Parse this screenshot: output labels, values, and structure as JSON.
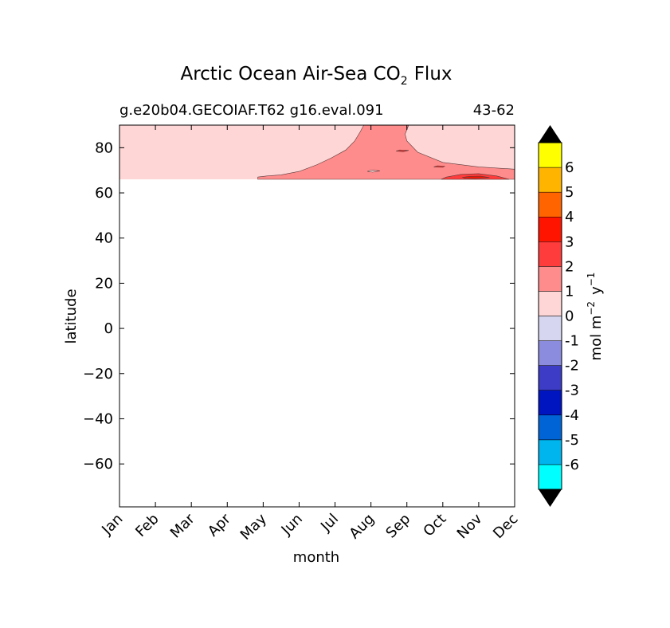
{
  "chart_data": {
    "type": "heatmap",
    "title_main": "Arctic Ocean Air-Sea CO",
    "title_sub": "2",
    "title_tail": "Flux",
    "subtitle_left": "g.e20b04.GECOIAF.T62 g16.eval.091",
    "subtitle_right": "43-62",
    "xlabel": "month",
    "ylabel": "latitude",
    "xcategories": [
      "Jan",
      "Feb",
      "Mar",
      "Apr",
      "May",
      "Jun",
      "Jul",
      "Aug",
      "Sep",
      "Oct",
      "Nov",
      "Dec"
    ],
    "xlim": [
      0,
      11
    ],
    "ylim": [
      -79,
      90
    ],
    "yticks": [
      80,
      60,
      40,
      20,
      0,
      -20,
      -40,
      -60
    ],
    "ytick_labels": [
      "80",
      "60",
      "40",
      "20",
      "0",
      "−20",
      "−40",
      "−60"
    ],
    "data_extent_lat": [
      66,
      90
    ],
    "colorbar": {
      "label_main": "mol m",
      "label_exp1": "−2",
      "label_mid": "y",
      "label_exp2": "−1",
      "levels": [
        -7,
        -6,
        -5,
        -4,
        -3,
        -2,
        -1,
        0,
        1,
        2,
        3,
        4,
        5,
        6,
        7
      ],
      "tick_labels": [
        "-6",
        "-5",
        "-4",
        "-3",
        "-2",
        "-1",
        "0",
        "1",
        "2",
        "3",
        "4",
        "5",
        "6"
      ],
      "colors": [
        "#00ffff",
        "#00b4ee",
        "#0064d6",
        "#0014c0",
        "#3c3cc6",
        "#8c8cde",
        "#d6d6f0",
        "#ffd6d6",
        "#ff8c8c",
        "#ff3c3c",
        "#ff1400",
        "#ff6400",
        "#ffb400",
        "#ffff00"
      ],
      "extend_color": "#000000"
    },
    "contour_regions": [
      {
        "name": "flux-0-1-background",
        "level_range": [
          0,
          1
        ],
        "color": "#ffd6d6",
        "boundary": [
          [
            0,
            66
          ],
          [
            11,
            66
          ],
          [
            11,
            90
          ],
          [
            0,
            90
          ]
        ]
      },
      {
        "name": "flux-1-2-region",
        "level_range": [
          1,
          2
        ],
        "color": "#ff8c8c",
        "boundary": [
          [
            3.85,
            66
          ],
          [
            11,
            66
          ],
          [
            11,
            70.5
          ],
          [
            10,
            71.5
          ],
          [
            9,
            73.5
          ],
          [
            8.3,
            78
          ],
          [
            8,
            83
          ],
          [
            7.95,
            86
          ],
          [
            8.05,
            90
          ],
          [
            6.8,
            90
          ],
          [
            6.7,
            87
          ],
          [
            6.55,
            83
          ],
          [
            6.3,
            79
          ],
          [
            5.9,
            75.5
          ],
          [
            5.5,
            72.5
          ],
          [
            5,
            69.5
          ],
          [
            4.5,
            68
          ],
          [
            4.1,
            67.5
          ],
          [
            3.85,
            67
          ]
        ]
      },
      {
        "name": "flux-2-3-region",
        "level_range": [
          2,
          3
        ],
        "color": "#ff3c3c",
        "boundary": [
          [
            8.95,
            66
          ],
          [
            10.85,
            66
          ],
          [
            10.5,
            67.5
          ],
          [
            10,
            68.5
          ],
          [
            9.5,
            68.2
          ],
          [
            9.1,
            67
          ]
        ]
      },
      {
        "name": "flux-3-4-region",
        "level_range": [
          3,
          4
        ],
        "color": "#ff1400",
        "boundary": [
          [
            9.6,
            66.5
          ],
          [
            9.9,
            66.4
          ],
          [
            10.3,
            66.8
          ],
          [
            10.05,
            67.4
          ],
          [
            9.75,
            67.3
          ],
          [
            9.55,
            66.9
          ]
        ]
      },
      {
        "name": "flux-small-patch-oct",
        "level_range": [
          2,
          3
        ],
        "color": "#ff3c3c",
        "boundary": [
          [
            8.75,
            71.5
          ],
          [
            9.0,
            71.3
          ],
          [
            9.05,
            71.8
          ],
          [
            8.85,
            72
          ]
        ]
      },
      {
        "name": "flux-small-patch-aug",
        "level_range": [
          2,
          3
        ],
        "color": "#ff3c3c",
        "boundary": [
          [
            7.7,
            78.5
          ],
          [
            7.9,
            78.2
          ],
          [
            8.05,
            78.8
          ],
          [
            7.8,
            79
          ]
        ]
      },
      {
        "name": "flux-small-patch-jul",
        "level_range": [
          0,
          1
        ],
        "color": "#ffd6d6",
        "boundary": [
          [
            6.9,
            69.5
          ],
          [
            7.05,
            69.2
          ],
          [
            7.25,
            69.8
          ],
          [
            7.0,
            70.1
          ]
        ]
      }
    ]
  }
}
